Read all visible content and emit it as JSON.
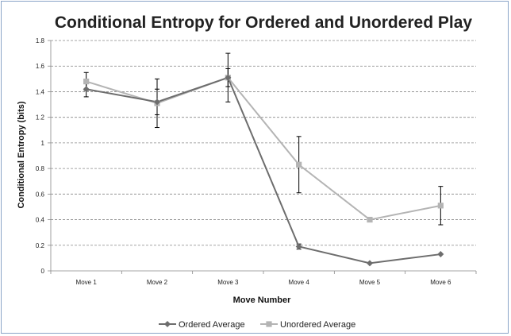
{
  "chart_data": {
    "type": "line",
    "title": "Conditional Entropy for Ordered and Unordered Play",
    "xlabel": "Move Number",
    "ylabel": "Conditional Entropy (bits)",
    "categories": [
      "Move 1",
      "Move 2",
      "Move 3",
      "Move 4",
      "Move 5",
      "Move 6"
    ],
    "ylim": [
      0,
      1.8
    ],
    "yticks": [
      0,
      0.2,
      0.4,
      0.6,
      0.8,
      1,
      1.2,
      1.4,
      1.6,
      1.8
    ],
    "ytick_labels": [
      "0",
      "0.2",
      "0.4",
      "0.6",
      "0.8",
      "1",
      "1.2",
      "1.4",
      "1.6",
      "1.8"
    ],
    "grid": true,
    "legend_position": "bottom",
    "series": [
      {
        "name": "Ordered Average",
        "values": [
          1.42,
          1.32,
          1.51,
          0.19,
          0.06,
          0.13
        ],
        "error": [
          0.06,
          0.1,
          0.07,
          0.02,
          0.0,
          0.0
        ],
        "color": "#6d6d6d",
        "marker": "diamond"
      },
      {
        "name": "Unordered Average",
        "values": [
          1.48,
          1.31,
          1.51,
          0.83,
          0.4,
          0.51
        ],
        "error": [
          0.07,
          0.19,
          0.19,
          0.22,
          0.01,
          0.15
        ],
        "color": "#b4b4b4",
        "marker": "square"
      }
    ]
  }
}
